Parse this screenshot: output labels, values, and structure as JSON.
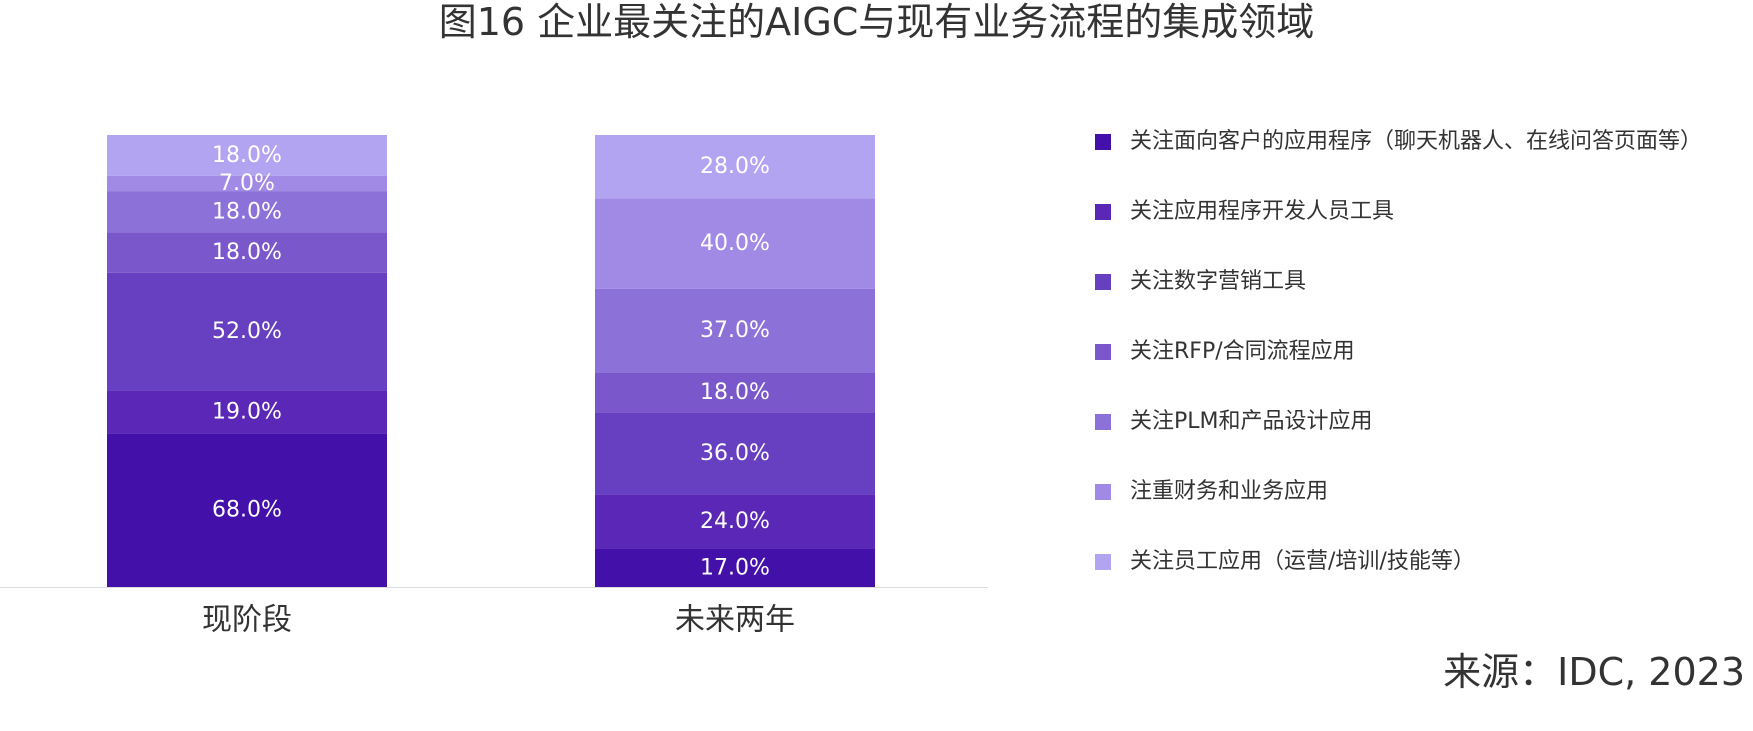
{
  "chart_data": {
    "type": "bar",
    "stacked": true,
    "title": "图16 企业最关注的AIGC与现有业务流程的集成领域",
    "categories": [
      "现阶段",
      "未来两年"
    ],
    "series": [
      {
        "name": "关注面向客户的应用程序（聊天机器人、在线问答页面等）",
        "values": [
          68.0,
          17.0
        ],
        "labels": [
          "68.0%",
          "17.0%"
        ],
        "color": "#4410aa"
      },
      {
        "name": "关注应用程序开发人员工具",
        "values": [
          19.0,
          24.0
        ],
        "labels": [
          "19.0%",
          "24.0%"
        ],
        "color": "#5a27b7"
      },
      {
        "name": "关注数字营销工具",
        "values": [
          52.0,
          36.0
        ],
        "labels": [
          "52.0%",
          "36.0%"
        ],
        "color": "#673fc1"
      },
      {
        "name": "关注RFP/合同流程应用",
        "values": [
          18.0,
          18.0
        ],
        "labels": [
          "18.0%",
          "18.0%"
        ],
        "color": "#7a57ca"
      },
      {
        "name": "关注PLM和产品设计应用",
        "values": [
          18.0,
          37.0
        ],
        "labels": [
          "18.0%",
          "37.0%"
        ],
        "color": "#8c71d8"
      },
      {
        "name": "注重财务和业务应用",
        "values": [
          7.0,
          40.0
        ],
        "labels": [
          "7.0%",
          "40.0%"
        ],
        "color": "#a08ae6"
      },
      {
        "name": "关注员工应用（运营/培训/技能等）",
        "values": [
          18.0,
          28.0
        ],
        "labels": [
          "18.0%",
          "28.0%"
        ],
        "color": "#b3a4f2"
      }
    ],
    "legend_position": "right",
    "grid": false
  },
  "source": "来源：IDC, 2023"
}
